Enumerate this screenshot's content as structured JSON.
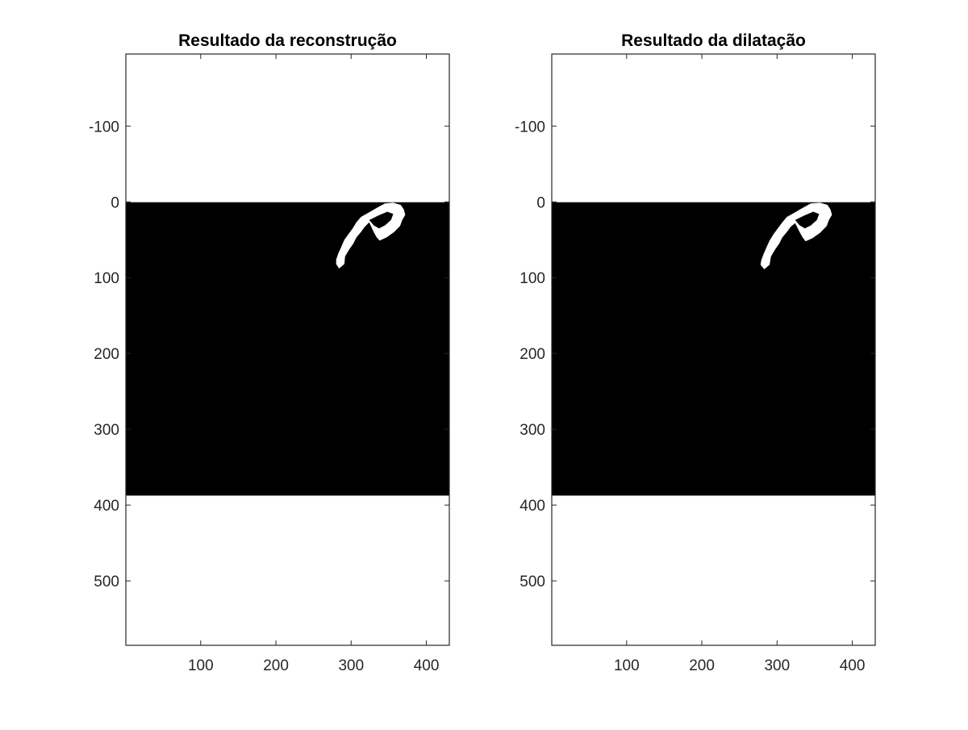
{
  "figure": {
    "background": "#ffffff",
    "axis_color": "#262626"
  },
  "chart_data": [
    {
      "type": "heatmap",
      "title": "Resultado da reconstrução",
      "xlabel": "",
      "ylabel": "",
      "xlim": [
        0.5,
        430.5
      ],
      "ylim": [
        -195,
        585
      ],
      "y_direction": "reverse",
      "xticks": [
        100,
        200,
        300,
        400
      ],
      "yticks": [
        -100,
        0,
        100,
        200,
        300,
        400,
        500
      ],
      "xtick_labels": [
        "100",
        "200",
        "300",
        "400"
      ],
      "ytick_labels": [
        "-100",
        "0",
        "100",
        "200",
        "300",
        "400",
        "500"
      ],
      "grid": false,
      "colormap": "gray",
      "image": {
        "x_range": [
          0.5,
          430.5
        ],
        "y_range": [
          0.5,
          387.5
        ],
        "background_color": "#000000",
        "foreground_color": "#ffffff",
        "blob_outline": [
          [
            280,
            82
          ],
          [
            284,
            88
          ],
          [
            291,
            82
          ],
          [
            292,
            72
          ],
          [
            298,
            62
          ],
          [
            303,
            55
          ],
          [
            307,
            47
          ],
          [
            313,
            40
          ],
          [
            318,
            33
          ],
          [
            324,
            27
          ],
          [
            330,
            40
          ],
          [
            334,
            47
          ],
          [
            338,
            51
          ],
          [
            347,
            47
          ],
          [
            357,
            40
          ],
          [
            365,
            32
          ],
          [
            368,
            24
          ],
          [
            372,
            17
          ],
          [
            370,
            10
          ],
          [
            366,
            4
          ],
          [
            356,
            1
          ],
          [
            345,
            2
          ],
          [
            334,
            8
          ],
          [
            322,
            15
          ],
          [
            313,
            20
          ],
          [
            307,
            27
          ],
          [
            302,
            35
          ],
          [
            296,
            43
          ],
          [
            291,
            50
          ],
          [
            287,
            59
          ],
          [
            283,
            68
          ],
          [
            280,
            76
          ]
        ],
        "hole_outline": [
          [
            324,
            24
          ],
          [
            336,
            18
          ],
          [
            348,
            13
          ],
          [
            356,
            16
          ],
          [
            353,
            24
          ],
          [
            345,
            31
          ],
          [
            337,
            35
          ],
          [
            330,
            31
          ]
        ]
      }
    },
    {
      "type": "heatmap",
      "title": "Resultado da dilatação",
      "xlabel": "",
      "ylabel": "",
      "xlim": [
        0.5,
        430.5
      ],
      "ylim": [
        -195,
        585
      ],
      "y_direction": "reverse",
      "xticks": [
        100,
        200,
        300,
        400
      ],
      "yticks": [
        -100,
        0,
        100,
        200,
        300,
        400,
        500
      ],
      "xtick_labels": [
        "100",
        "200",
        "300",
        "400"
      ],
      "ytick_labels": [
        "-100",
        "0",
        "100",
        "200",
        "300",
        "400",
        "500"
      ],
      "grid": false,
      "colormap": "gray",
      "image": {
        "x_range": [
          0.5,
          430.5
        ],
        "y_range": [
          0.5,
          387.5
        ],
        "background_color": "#000000",
        "foreground_color": "#ffffff",
        "blob_outline": [
          [
            278,
            83
          ],
          [
            283,
            89
          ],
          [
            290,
            83
          ],
          [
            292,
            72
          ],
          [
            298,
            62
          ],
          [
            303,
            55
          ],
          [
            307,
            47
          ],
          [
            313,
            40
          ],
          [
            318,
            33
          ],
          [
            324,
            28
          ],
          [
            330,
            40
          ],
          [
            334,
            47
          ],
          [
            338,
            52
          ],
          [
            347,
            48
          ],
          [
            357,
            41
          ],
          [
            366,
            32
          ],
          [
            369,
            24
          ],
          [
            373,
            17
          ],
          [
            371,
            10
          ],
          [
            367,
            4
          ],
          [
            357,
            1
          ],
          [
            345,
            2
          ],
          [
            334,
            8
          ],
          [
            322,
            15
          ],
          [
            313,
            20
          ],
          [
            307,
            27
          ],
          [
            301,
            35
          ],
          [
            295,
            43
          ],
          [
            290,
            51
          ],
          [
            286,
            60
          ],
          [
            282,
            69
          ],
          [
            279,
            77
          ]
        ],
        "hole_outline": [
          [
            324,
            24
          ],
          [
            336,
            18
          ],
          [
            348,
            13
          ],
          [
            356,
            16
          ],
          [
            353,
            24
          ],
          [
            345,
            31
          ],
          [
            337,
            35
          ],
          [
            330,
            31
          ]
        ]
      }
    }
  ]
}
